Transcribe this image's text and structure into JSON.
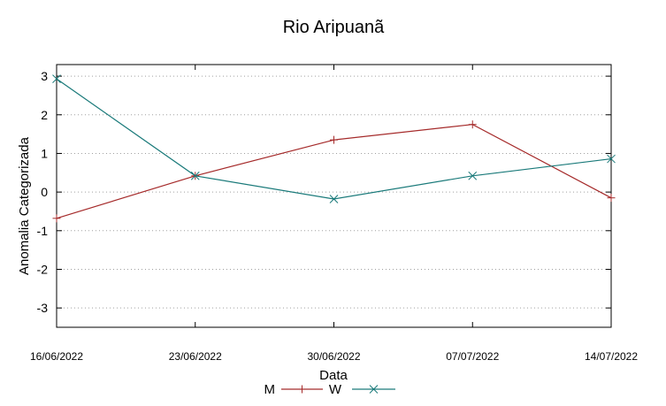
{
  "chart_data": {
    "type": "line",
    "title": "Rio Aripuanã",
    "xlabel": "Data",
    "ylabel": "Anomalia Categorizada",
    "categories": [
      "16/06/2022",
      "23/06/2022",
      "30/06/2022",
      "07/07/2022",
      "14/07/2022"
    ],
    "yticks": [
      "3",
      "2",
      "1",
      "0",
      "-1",
      "-2",
      "-3"
    ],
    "ylim": [
      -3.5,
      3.3
    ],
    "grid": "horizontal dotted",
    "legend_position": "bottom-center",
    "series": [
      {
        "name": "M",
        "color": "#a52a2a",
        "marker": "plus",
        "values": [
          -0.68,
          0.42,
          1.35,
          1.75,
          -0.15
        ]
      },
      {
        "name": "W",
        "color": "#1a7a7a",
        "marker": "cross",
        "values": [
          2.93,
          0.42,
          -0.18,
          0.42,
          0.86
        ]
      }
    ]
  }
}
